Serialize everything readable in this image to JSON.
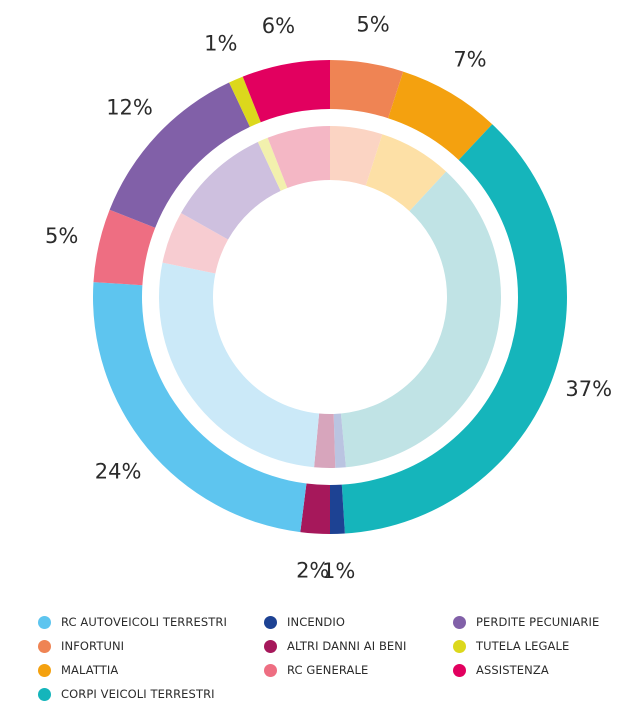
{
  "chart_data": {
    "type": "donut",
    "center": "",
    "outer_ring": {
      "slices": [
        {
          "name": "RC AUTOVEICOLI TERRESTRI",
          "percent": 24,
          "label": "24%",
          "color": "#5ec5ef"
        },
        {
          "name": "INFORTUNI",
          "percent": 5,
          "label": "5%",
          "color": "#ef8454"
        },
        {
          "name": "MALATTIA",
          "percent": 7,
          "label": "7%",
          "color": "#f4a10f"
        },
        {
          "name": "CORPI VEICOLI TERRESTRI",
          "percent": 37,
          "label": "37%",
          "color": "#15b5bb"
        },
        {
          "name": "INCENDIO",
          "percent": 1,
          "label": "1%",
          "color": "#1d4293"
        },
        {
          "name": "ALTRI DANNI AI BENI",
          "percent": 2,
          "label": "2%",
          "color": "#a6185b"
        },
        {
          "name": "RC GENERALE",
          "percent": 5,
          "label": "5%",
          "color": "#ee6e82"
        },
        {
          "name": "PERDITE PECUNIARIE",
          "percent": 12,
          "label": "12%",
          "color": "#8160a8"
        },
        {
          "name": "TUTELA LEGALE",
          "percent": 1,
          "label": "1%",
          "color": "#dcd81c"
        },
        {
          "name": "ASSISTENZA",
          "percent": 6,
          "label": "6%",
          "color": "#e2005f"
        }
      ],
      "clockwise_order_from_top": [
        "INFORTUNI",
        "MALATTIA",
        "CORPI VEICOLI TERRESTRI",
        "INCENDIO",
        "ALTRI DANNI AI BENI",
        "RC AUTOVEICOLI TERRESTRI",
        "RC GENERALE",
        "PERDITE PECUNIARIE",
        "TUTELA LEGALE",
        "ASSISTENZA"
      ]
    },
    "inner_ring": {
      "note_values_unlabeled": true,
      "slices": [
        {
          "name": "INFORTUNI",
          "percent": 5,
          "color": "#fbd4c3"
        },
        {
          "name": "MALATTIA",
          "percent": 7,
          "color": "#fde0a6"
        },
        {
          "name": "CORPI VEICOLI TERRESTRI",
          "percent": 37,
          "color": "#c0e3e5"
        },
        {
          "name": "INCENDIO",
          "percent": 1,
          "color": "#bac4e1"
        },
        {
          "name": "ALTRI DANNI AI BENI",
          "percent": 2,
          "color": "#d7a5bc"
        },
        {
          "name": "RC AUTOVEICOLI TERRESTRI",
          "percent": 27,
          "color": "#cbe9f8"
        },
        {
          "name": "RC GENERALE",
          "percent": 5,
          "color": "#f7ccd1"
        },
        {
          "name": "PERDITE PECUNIARIE",
          "percent": 10,
          "color": "#cec0df"
        },
        {
          "name": "TUTELA LEGALE",
          "percent": 1,
          "color": "#f2f0ad"
        },
        {
          "name": "ASSISTENZA",
          "percent": 6,
          "color": "#f4b7c5"
        }
      ]
    },
    "legend": {
      "placement": "bottom",
      "columns": 3,
      "items": [
        {
          "label": "RC AUTOVEICOLI TERRESTRI",
          "color": "#5ec5ef"
        },
        {
          "label": "INFORTUNI",
          "color": "#ef8454"
        },
        {
          "label": "MALATTIA",
          "color": "#f4a10f"
        },
        {
          "label": "CORPI VEICOLI TERRESTRI",
          "color": "#15b5bb"
        },
        {
          "label": "INCENDIO",
          "color": "#1d4293"
        },
        {
          "label": "ALTRI DANNI AI BENI",
          "color": "#a6185b"
        },
        {
          "label": "RC GENERALE",
          "color": "#ee6e82"
        },
        {
          "label": "PERDITE PECUNIARIE",
          "color": "#8160a8"
        },
        {
          "label": "TUTELA LEGALE",
          "color": "#dcd81c"
        },
        {
          "label": "ASSISTENZA",
          "color": "#e2005f"
        }
      ]
    }
  }
}
